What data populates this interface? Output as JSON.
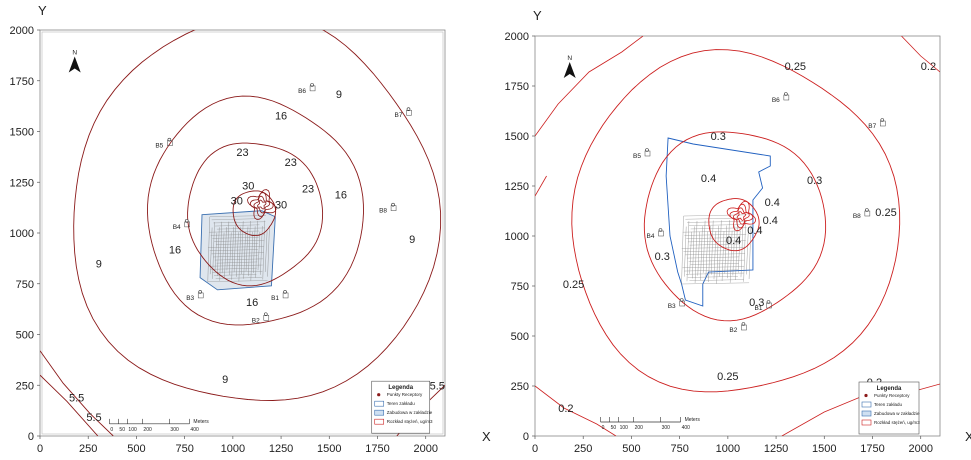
{
  "panels": [
    {
      "id": "left",
      "axis": {
        "x_label": "X",
        "y_label": "Y",
        "x_ticks": [
          "0",
          "250",
          "500",
          "750",
          "1000",
          "1250",
          "1500",
          "1750",
          "2000"
        ],
        "y_ticks": [
          "0",
          "250",
          "500",
          "750",
          "1000",
          "1250",
          "1500",
          "1750",
          "2000"
        ],
        "xlim": [
          0,
          2100
        ],
        "ylim": [
          0,
          2000
        ]
      },
      "north_label": "N",
      "contours": [
        {
          "value": "30",
          "radius": 110,
          "color": "#8b1a1a"
        },
        {
          "value": "23",
          "radius": 350,
          "color": "#8b1a1a"
        },
        {
          "value": "16",
          "radius": 560,
          "color": "#8b1a1a"
        },
        {
          "value": "9",
          "radius": 950,
          "color": "#8b1a1a"
        }
      ],
      "contour_labels": [
        {
          "text": "9",
          "x": 1550,
          "y": 1665
        },
        {
          "text": "16",
          "x": 1250,
          "y": 1560
        },
        {
          "text": "23",
          "x": 1050,
          "y": 1380
        },
        {
          "text": "23",
          "x": 1300,
          "y": 1330
        },
        {
          "text": "23",
          "x": 1390,
          "y": 1200
        },
        {
          "text": "16",
          "x": 1560,
          "y": 1170
        },
        {
          "text": "30",
          "x": 1080,
          "y": 1215
        },
        {
          "text": "30",
          "x": 1250,
          "y": 1120
        },
        {
          "text": "30",
          "x": 1020,
          "y": 1140
        },
        {
          "text": "9",
          "x": 1930,
          "y": 950
        },
        {
          "text": "16",
          "x": 700,
          "y": 900
        },
        {
          "text": "9",
          "x": 305,
          "y": 830
        },
        {
          "text": "16",
          "x": 1100,
          "y": 640
        },
        {
          "text": "9",
          "x": 960,
          "y": 260
        },
        {
          "text": "5.5",
          "x": 190,
          "y": 170
        },
        {
          "text": "5.5",
          "x": 280,
          "y": 75
        },
        {
          "text": "5.5",
          "x": 2060,
          "y": 230
        }
      ],
      "receptors": [
        {
          "label": "B1",
          "x": 1250,
          "y": 690
        },
        {
          "label": "B2",
          "x": 1150,
          "y": 580
        },
        {
          "label": "B3",
          "x": 810,
          "y": 690
        },
        {
          "label": "B4",
          "x": 740,
          "y": 1040
        },
        {
          "label": "B5",
          "x": 650,
          "y": 1440
        },
        {
          "label": "B6",
          "x": 1390,
          "y": 1710
        },
        {
          "label": "B7",
          "x": 1890,
          "y": 1590
        },
        {
          "label": "B8",
          "x": 1810,
          "y": 1120
        }
      ],
      "legend": {
        "title": "Legenda",
        "items": [
          "Punkty Receptory",
          "Teren zakładu",
          "Zabudowa w zakładzie",
          "Rozkład stężeń, ug/m3"
        ]
      },
      "scale": {
        "ticks": [
          "0",
          "50",
          "100",
          "200",
          "300",
          "400"
        ],
        "unit": "Meters"
      }
    },
    {
      "id": "right",
      "axis": {
        "x_label": "X",
        "y_label": "Y",
        "x_ticks": [
          "0",
          "250",
          "500",
          "750",
          "1000",
          "1250",
          "1500",
          "1750",
          "2000"
        ],
        "y_ticks": [
          "0",
          "250",
          "500",
          "750",
          "1000",
          "1250",
          "1500",
          "1750",
          "2000"
        ],
        "xlim": [
          0,
          2100
        ],
        "ylim": [
          0,
          2000
        ]
      },
      "north_label": "N",
      "contours": [
        {
          "value": "0.4",
          "radius": 130,
          "color": "#cc1f1f"
        },
        {
          "value": "0.3",
          "radius": 470,
          "color": "#cc1f1f"
        },
        {
          "value": "0.25",
          "radius": 850,
          "color": "#cc1f1f"
        }
      ],
      "contour_labels": [
        {
          "text": "0.25",
          "x": 1350,
          "y": 1830
        },
        {
          "text": "0.2",
          "x": 2040,
          "y": 1830
        },
        {
          "text": "0.3",
          "x": 950,
          "y": 1480
        },
        {
          "text": "0.3",
          "x": 1450,
          "y": 1260
        },
        {
          "text": "0.4",
          "x": 900,
          "y": 1270
        },
        {
          "text": "0.4",
          "x": 1230,
          "y": 1150
        },
        {
          "text": "0.4",
          "x": 1220,
          "y": 1060
        },
        {
          "text": "0.4",
          "x": 1030,
          "y": 960
        },
        {
          "text": "0.4",
          "x": 1140,
          "y": 1010
        },
        {
          "text": "0.25",
          "x": 1820,
          "y": 1100
        },
        {
          "text": "0.3",
          "x": 660,
          "y": 880
        },
        {
          "text": "0.25",
          "x": 200,
          "y": 740
        },
        {
          "text": "0.3",
          "x": 1150,
          "y": 650
        },
        {
          "text": "0.25",
          "x": 1000,
          "y": 280
        },
        {
          "text": "0.2",
          "x": 160,
          "y": 120
        },
        {
          "text": "0.2",
          "x": 1760,
          "y": 250
        }
      ],
      "receptors": [
        {
          "label": "B1",
          "x": 1190,
          "y": 650
        },
        {
          "label": "B2",
          "x": 1060,
          "y": 540
        },
        {
          "label": "B3",
          "x": 740,
          "y": 660
        },
        {
          "label": "B4",
          "x": 630,
          "y": 1010
        },
        {
          "label": "B5",
          "x": 560,
          "y": 1410
        },
        {
          "label": "B6",
          "x": 1280,
          "y": 1690
        },
        {
          "label": "B7",
          "x": 1780,
          "y": 1560
        },
        {
          "label": "B8",
          "x": 1700,
          "y": 1110
        }
      ],
      "legend": {
        "title": "Legenda",
        "items": [
          "Punkty Receptory",
          "Teren zakładu",
          "Zabudowa w zakładzie",
          "Rozkład stężeń, ug/m3"
        ]
      },
      "scale": {
        "ticks": [
          "0",
          "50",
          "100",
          "200",
          "300",
          "400"
        ],
        "unit": "Meters"
      }
    }
  ]
}
